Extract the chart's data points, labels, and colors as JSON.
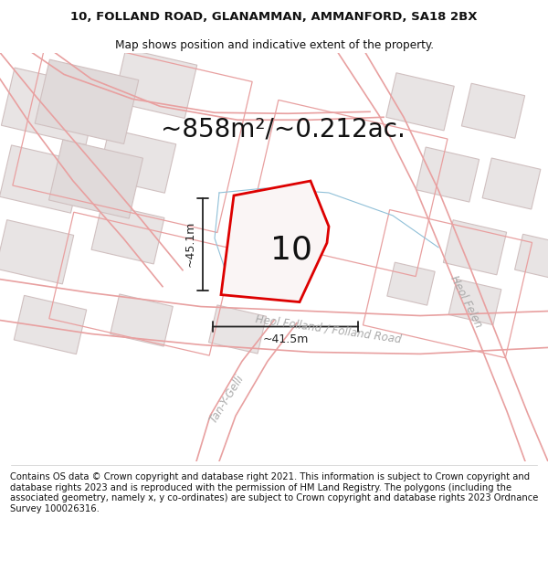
{
  "title_line1": "10, FOLLAND ROAD, GLANAMMAN, AMMANFORD, SA18 2BX",
  "title_line2": "Map shows position and indicative extent of the property.",
  "area_label": "~858m²/~0.212ac.",
  "plot_number": "10",
  "dim_vertical": "~45.1m",
  "dim_horizontal": "~41.5m",
  "road_label1": "Heol Folland / Folland Road",
  "road_label2": "Heol Felen",
  "road_label3": "Tan-Y-Gelli",
  "footer_text": "Contains OS data © Crown copyright and database right 2021. This information is subject to Crown copyright and database rights 2023 and is reproduced with the permission of HM Land Registry. The polygons (including the associated geometry, namely x, y co-ordinates) are subject to Crown copyright and database rights 2023 Ordnance Survey 100026316.",
  "map_bg": "#faf7f7",
  "plot_fill": "#faf5f5",
  "plot_edge": "#dd0000",
  "road_line_color": "#e8a0a0",
  "road_outline_color": "#f0c8c8",
  "building_fill": "#e8e4e4",
  "building_edge": "#d0c0c0",
  "blue_line_color": "#90c0d8",
  "dim_line_color": "#222222",
  "text_color": "#111111",
  "road_text_color": "#aaaaaa",
  "title_fontsize": 9.5,
  "area_fontsize": 20,
  "plot_num_fontsize": 26,
  "dim_fontsize": 9,
  "road_fontsize": 8.5,
  "footer_fontsize": 7.2
}
